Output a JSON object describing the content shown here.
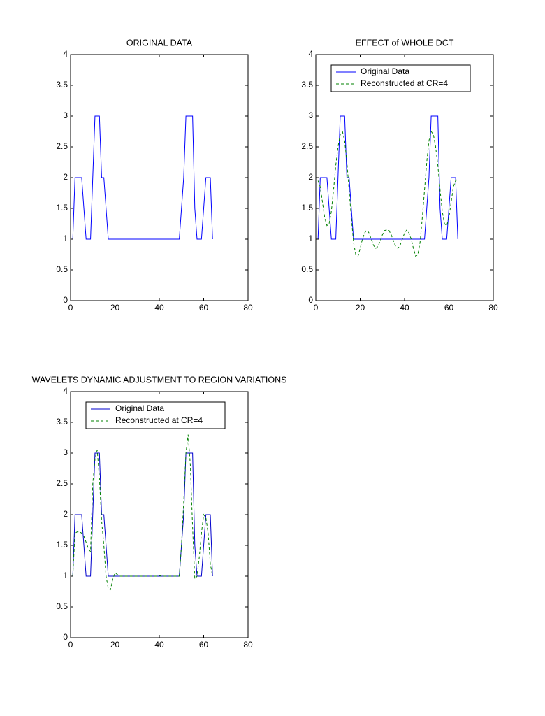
{
  "chart_data": [
    {
      "type": "line",
      "title": "ORIGINAL DATA",
      "legend": null,
      "xlim": [
        0,
        80
      ],
      "xticks": [
        0,
        20,
        40,
        60,
        80
      ],
      "ylim": [
        0,
        4
      ],
      "yticks": [
        0,
        0.5,
        1,
        1.5,
        2,
        2.5,
        3,
        3.5,
        4
      ],
      "grid": false,
      "x": [
        1,
        2,
        3,
        4,
        5,
        6,
        7,
        8,
        9,
        10,
        11,
        12,
        13,
        14,
        15,
        16,
        17,
        18,
        19,
        20,
        21,
        22,
        23,
        24,
        25,
        26,
        27,
        28,
        29,
        30,
        31,
        32,
        33,
        34,
        35,
        36,
        37,
        38,
        39,
        40,
        41,
        42,
        43,
        44,
        45,
        46,
        47,
        48,
        49,
        50,
        51,
        52,
        53,
        54,
        55,
        56,
        57,
        58,
        59,
        60,
        61,
        62,
        63,
        64
      ],
      "series": [
        {
          "color": "#0000ff",
          "style": "solid",
          "values": [
            1,
            2,
            2,
            2,
            2,
            1.5,
            1,
            1,
            1,
            2,
            3,
            3,
            3,
            2,
            2,
            1.5,
            1,
            1,
            1,
            1,
            1,
            1,
            1,
            1,
            1,
            1,
            1,
            1,
            1,
            1,
            1,
            1,
            1,
            1,
            1,
            1,
            1,
            1,
            1,
            1,
            1,
            1,
            1,
            1,
            1,
            1,
            1,
            1,
            1,
            1.5,
            2,
            3,
            3,
            3,
            3,
            1.5,
            1,
            1,
            1,
            1.5,
            2,
            2,
            2,
            1
          ]
        }
      ]
    },
    {
      "type": "line",
      "title": "EFFECT of WHOLE DCT",
      "legend": "upper left",
      "xlim": [
        0,
        80
      ],
      "xticks": [
        0,
        20,
        40,
        60,
        80
      ],
      "ylim": [
        0,
        4
      ],
      "yticks": [
        0,
        0.5,
        1,
        1.5,
        2,
        2.5,
        3,
        3.5,
        4
      ],
      "grid": false,
      "x": [
        1,
        2,
        3,
        4,
        5,
        6,
        7,
        8,
        9,
        10,
        11,
        12,
        13,
        14,
        15,
        16,
        17,
        18,
        19,
        20,
        21,
        22,
        23,
        24,
        25,
        26,
        27,
        28,
        29,
        30,
        31,
        32,
        33,
        34,
        35,
        36,
        37,
        38,
        39,
        40,
        41,
        42,
        43,
        44,
        45,
        46,
        47,
        48,
        49,
        50,
        51,
        52,
        53,
        54,
        55,
        56,
        57,
        58,
        59,
        60,
        61,
        62,
        63,
        64
      ],
      "series": [
        {
          "name": "Original Data",
          "color": "#0000ff",
          "style": "solid",
          "values": [
            1,
            2,
            2,
            2,
            2,
            1.5,
            1,
            1,
            1,
            2,
            3,
            3,
            3,
            2,
            2,
            1.5,
            1,
            1,
            1,
            1,
            1,
            1,
            1,
            1,
            1,
            1,
            1,
            1,
            1,
            1,
            1,
            1,
            1,
            1,
            1,
            1,
            1,
            1,
            1,
            1,
            1,
            1,
            1,
            1,
            1,
            1,
            1,
            1,
            1,
            1.5,
            2,
            3,
            3,
            3,
            3,
            1.5,
            1,
            1,
            1,
            1.5,
            2,
            2,
            2,
            1
          ]
        },
        {
          "name": "Reconstructed at CR=4",
          "color": "#008000",
          "style": "dashed",
          "values": [
            1.95,
            1.85,
            1.6,
            1.35,
            1.22,
            1.25,
            1.45,
            1.8,
            2.2,
            2.5,
            2.7,
            2.75,
            2.6,
            2.25,
            1.8,
            1.35,
            0.95,
            0.75,
            0.72,
            0.85,
            1,
            1.1,
            1.15,
            1.1,
            1,
            0.9,
            0.85,
            0.88,
            0.97,
            1.07,
            1.14,
            1.15,
            1.14,
            1.07,
            0.97,
            0.88,
            0.85,
            0.9,
            1,
            1.1,
            1.15,
            1.1,
            1,
            0.85,
            0.72,
            0.75,
            0.95,
            1.35,
            1.8,
            2.25,
            2.6,
            2.75,
            2.7,
            2.5,
            2.2,
            1.8,
            1.45,
            1.25,
            1.22,
            1.35,
            1.6,
            1.85,
            1.95,
            1.97
          ]
        }
      ]
    },
    {
      "type": "line",
      "title": "WAVELETS DYNAMIC ADJUSTMENT TO REGION VARIATIONS",
      "legend": "upper left",
      "xlim": [
        0,
        80
      ],
      "xticks": [
        0,
        20,
        40,
        60,
        80
      ],
      "ylim": [
        0,
        4
      ],
      "yticks": [
        0,
        0.5,
        1,
        1.5,
        2,
        2.5,
        3,
        3.5,
        4
      ],
      "grid": false,
      "x": [
        1,
        2,
        3,
        4,
        5,
        6,
        7,
        8,
        9,
        10,
        11,
        12,
        13,
        14,
        15,
        16,
        17,
        18,
        19,
        20,
        21,
        22,
        23,
        24,
        25,
        26,
        27,
        28,
        29,
        30,
        31,
        32,
        33,
        34,
        35,
        36,
        37,
        38,
        39,
        40,
        41,
        42,
        43,
        44,
        45,
        46,
        47,
        48,
        49,
        50,
        51,
        52,
        53,
        54,
        55,
        56,
        57,
        58,
        59,
        60,
        61,
        62,
        63,
        64
      ],
      "series": [
        {
          "name": "Original Data",
          "color": "#0000cc",
          "style": "solid",
          "values": [
            1,
            2,
            2,
            2,
            2,
            1.5,
            1,
            1,
            1,
            2,
            3,
            3,
            3,
            2,
            2,
            1.5,
            1,
            1,
            1,
            1,
            1,
            1,
            1,
            1,
            1,
            1,
            1,
            1,
            1,
            1,
            1,
            1,
            1,
            1,
            1,
            1,
            1,
            1,
            1,
            1,
            1,
            1,
            1,
            1,
            1,
            1,
            1,
            1,
            1,
            1.5,
            2,
            3,
            3,
            3,
            3,
            1.5,
            1,
            1,
            1,
            1.5,
            2,
            2,
            2,
            1
          ]
        },
        {
          "name": "Reconstructed at CR=4",
          "color": "#008000",
          "style": "dashed",
          "values": [
            1,
            1.7,
            1.72,
            1.72,
            1.7,
            1.65,
            1.55,
            1.45,
            1.4,
            2.5,
            2.9,
            3.05,
            2.6,
            1.9,
            1.5,
            1,
            0.8,
            0.78,
            0.95,
            1.05,
            1.03,
            1,
            1,
            1,
            1,
            1,
            1,
            1,
            1,
            1,
            1,
            1,
            1,
            1,
            1,
            1,
            1,
            1,
            1,
            1.01,
            1,
            1,
            1,
            1,
            1,
            1,
            1,
            1,
            1,
            1.5,
            2.2,
            3,
            3.3,
            2.8,
            1.8,
            0.95,
            1,
            1.3,
            1.7,
            2,
            1.95,
            1.7,
            1.2,
            1
          ]
        }
      ]
    }
  ]
}
